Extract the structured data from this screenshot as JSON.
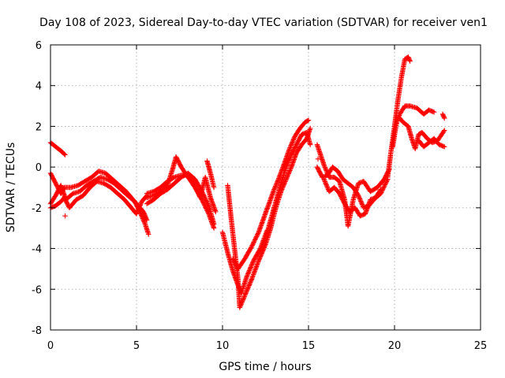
{
  "chart_data": {
    "type": "scatter",
    "title": "Day 108 of 2023, Sidereal Day-to-day VTEC variation (SDTVAR) for receiver ven1",
    "xlabel": "GPS time / hours",
    "ylabel": "SDTVAR / TECUs",
    "xlim": [
      0,
      25
    ],
    "ylim": [
      -8,
      6
    ],
    "xticks": [
      "0",
      "5",
      "10",
      "15",
      "20",
      "25"
    ],
    "yticks": [
      "-8",
      "-6",
      "-4",
      "-2",
      "0",
      "2",
      "4",
      "6"
    ],
    "grid": true,
    "marker": "plus",
    "color": "#ff0000",
    "series": [
      {
        "values": [
          [
            0.0,
            1.2
          ],
          [
            0.3,
            1.0
          ],
          [
            0.6,
            0.8
          ],
          [
            0.85,
            0.6
          ]
        ]
      },
      {
        "values": [
          [
            0.0,
            -0.3
          ],
          [
            0.3,
            -0.8
          ],
          [
            0.6,
            -1.3
          ],
          [
            0.8,
            -1.0
          ],
          [
            1.2,
            -1.0
          ],
          [
            1.6,
            -0.9
          ],
          [
            2.0,
            -0.7
          ],
          [
            2.4,
            -0.5
          ],
          [
            2.8,
            -0.2
          ],
          [
            3.2,
            -0.3
          ],
          [
            3.6,
            -0.6
          ],
          [
            4.0,
            -0.9
          ],
          [
            4.4,
            -1.2
          ],
          [
            4.8,
            -1.6
          ],
          [
            5.1,
            -1.9
          ],
          [
            5.4,
            -2.2
          ],
          [
            5.6,
            -2.6
          ]
        ]
      },
      {
        "values": [
          [
            0.0,
            -1.8
          ],
          [
            0.3,
            -1.4
          ],
          [
            0.6,
            -0.9
          ],
          [
            0.9,
            -1.6
          ],
          [
            1.3,
            -1.3
          ],
          [
            1.7,
            -1.2
          ],
          [
            2.1,
            -0.9
          ],
          [
            2.5,
            -0.7
          ],
          [
            2.9,
            -0.5
          ],
          [
            3.3,
            -0.6
          ],
          [
            3.7,
            -0.8
          ],
          [
            4.1,
            -1.1
          ],
          [
            4.5,
            -1.4
          ],
          [
            4.9,
            -1.7
          ],
          [
            5.2,
            -2.2
          ],
          [
            5.5,
            -2.8
          ],
          [
            5.7,
            -3.3
          ]
        ]
      },
      {
        "values": [
          [
            0.0,
            -2.0
          ],
          [
            0.3,
            -1.9
          ],
          [
            0.6,
            -1.7
          ],
          [
            0.8,
            -1.5
          ],
          [
            1.1,
            -2.0
          ],
          [
            1.5,
            -1.6
          ],
          [
            1.9,
            -1.4
          ],
          [
            2.3,
            -1.0
          ],
          [
            2.7,
            -0.7
          ],
          [
            3.1,
            -0.8
          ],
          [
            3.5,
            -1.0
          ],
          [
            3.9,
            -1.3
          ],
          [
            4.3,
            -1.6
          ],
          [
            4.7,
            -2.0
          ],
          [
            5.0,
            -2.3
          ],
          [
            5.3,
            -1.7
          ],
          [
            5.6,
            -1.4
          ]
        ]
      },
      {
        "values": [
          [
            5.6,
            -1.8
          ],
          [
            6.0,
            -1.6
          ],
          [
            6.4,
            -1.3
          ],
          [
            6.8,
            -1.1
          ],
          [
            7.2,
            -0.8
          ],
          [
            7.6,
            -0.5
          ],
          [
            8.0,
            -0.3
          ],
          [
            8.4,
            -0.6
          ],
          [
            8.8,
            -1.2
          ],
          [
            9.2,
            -1.9
          ],
          [
            9.5,
            -2.8
          ]
        ]
      },
      {
        "values": [
          [
            5.6,
            -1.5
          ],
          [
            6.0,
            -1.4
          ],
          [
            6.4,
            -1.2
          ],
          [
            6.8,
            -0.9
          ],
          [
            7.1,
            -0.1
          ],
          [
            7.3,
            0.5
          ],
          [
            7.6,
            0.0
          ],
          [
            8.0,
            -0.5
          ],
          [
            8.4,
            -1.0
          ],
          [
            8.8,
            -1.6
          ],
          [
            9.2,
            -2.3
          ],
          [
            9.5,
            -3.0
          ]
        ]
      },
      {
        "values": [
          [
            5.6,
            -1.3
          ],
          [
            6.0,
            -1.2
          ],
          [
            6.4,
            -1.0
          ],
          [
            6.8,
            -0.7
          ],
          [
            7.2,
            -0.5
          ],
          [
            7.6,
            -0.4
          ],
          [
            8.0,
            -0.4
          ],
          [
            8.4,
            -0.9
          ],
          [
            8.7,
            -1.5
          ],
          [
            9.0,
            -0.5
          ],
          [
            9.3,
            -1.5
          ],
          [
            9.6,
            -2.2
          ]
        ]
      },
      {
        "values": [
          [
            9.1,
            0.3
          ],
          [
            9.3,
            -0.3
          ],
          [
            9.5,
            -1.0
          ]
        ]
      },
      {
        "values": [
          [
            10.0,
            -3.2
          ],
          [
            10.3,
            -4.2
          ],
          [
            10.6,
            -5.1
          ],
          [
            10.9,
            -5.8
          ],
          [
            11.1,
            -6.2
          ],
          [
            11.4,
            -5.4
          ],
          [
            11.8,
            -4.6
          ],
          [
            12.2,
            -4.0
          ],
          [
            12.6,
            -3.1
          ]
        ]
      },
      {
        "values": [
          [
            10.3,
            -0.9
          ],
          [
            10.5,
            -2.5
          ],
          [
            10.7,
            -4.0
          ],
          [
            10.9,
            -5.5
          ],
          [
            11.0,
            -6.9
          ],
          [
            11.3,
            -6.3
          ],
          [
            11.7,
            -5.5
          ],
          [
            12.1,
            -4.6
          ],
          [
            12.5,
            -3.8
          ],
          [
            12.8,
            -3.0
          ],
          [
            13.1,
            -2.0
          ],
          [
            13.4,
            -1.2
          ],
          [
            13.7,
            -0.6
          ],
          [
            14.0,
            0.0
          ],
          [
            14.3,
            0.7
          ],
          [
            14.6,
            1.1
          ],
          [
            14.9,
            1.4
          ],
          [
            15.1,
            1.9
          ]
        ]
      },
      {
        "values": [
          [
            10.6,
            -4.5
          ],
          [
            10.9,
            -5.0
          ],
          [
            11.3,
            -4.5
          ],
          [
            11.7,
            -3.9
          ],
          [
            12.1,
            -3.2
          ],
          [
            12.4,
            -2.5
          ],
          [
            12.7,
            -1.8
          ],
          [
            13.0,
            -1.1
          ],
          [
            13.3,
            -0.5
          ],
          [
            13.6,
            0.2
          ],
          [
            13.9,
            0.9
          ],
          [
            14.2,
            1.5
          ],
          [
            14.5,
            1.9
          ],
          [
            14.8,
            2.2
          ],
          [
            15.0,
            2.3
          ]
        ]
      },
      {
        "values": [
          [
            12.5,
            -3.5
          ],
          [
            12.8,
            -2.6
          ],
          [
            13.1,
            -1.7
          ],
          [
            13.4,
            -0.8
          ],
          [
            13.7,
            0.0
          ],
          [
            14.0,
            0.6
          ],
          [
            14.3,
            1.1
          ],
          [
            14.6,
            1.6
          ],
          [
            14.9,
            1.7
          ],
          [
            15.1,
            1.1
          ]
        ]
      },
      {
        "values": [
          [
            15.5,
            1.1
          ],
          [
            15.7,
            0.6
          ],
          [
            15.9,
            0.1
          ],
          [
            16.2,
            -0.5
          ],
          [
            16.5,
            -0.5
          ],
          [
            16.8,
            -0.7
          ],
          [
            17.1,
            -1.6
          ],
          [
            17.3,
            -2.9
          ],
          [
            17.6,
            -1.6
          ],
          [
            17.9,
            -0.8
          ],
          [
            18.2,
            -0.7
          ],
          [
            18.6,
            -1.2
          ],
          [
            19.0,
            -1.0
          ],
          [
            19.4,
            -0.6
          ],
          [
            19.7,
            -0.1
          ]
        ]
      },
      {
        "values": [
          [
            15.5,
            0.0
          ],
          [
            15.8,
            -0.5
          ],
          [
            16.1,
            -0.4
          ],
          [
            16.4,
            0.0
          ],
          [
            16.7,
            -0.2
          ],
          [
            17.0,
            -0.6
          ],
          [
            17.3,
            -0.8
          ],
          [
            17.6,
            -1.0
          ],
          [
            17.9,
            -1.4
          ],
          [
            18.2,
            -2.0
          ],
          [
            18.5,
            -1.9
          ],
          [
            18.8,
            -1.6
          ],
          [
            19.2,
            -1.3
          ],
          [
            19.6,
            -0.6
          ]
        ]
      },
      {
        "values": [
          [
            15.9,
            -0.6
          ],
          [
            16.2,
            -1.2
          ],
          [
            16.5,
            -1.0
          ],
          [
            16.8,
            -1.3
          ],
          [
            17.1,
            -1.8
          ],
          [
            17.4,
            -2.2
          ],
          [
            17.7,
            -2.0
          ],
          [
            18.0,
            -2.4
          ],
          [
            18.3,
            -2.3
          ],
          [
            18.6,
            -1.6
          ],
          [
            18.9,
            -1.5
          ],
          [
            19.2,
            -1.1
          ]
        ]
      },
      {
        "values": [
          [
            19.6,
            -0.5
          ],
          [
            19.8,
            0.8
          ],
          [
            20.0,
            2.0
          ],
          [
            20.2,
            3.3
          ],
          [
            20.4,
            4.4
          ],
          [
            20.6,
            5.3
          ],
          [
            20.8,
            5.4
          ],
          [
            20.9,
            5.2
          ]
        ]
      },
      {
        "values": [
          [
            19.9,
            1.0
          ],
          [
            20.1,
            2.1
          ],
          [
            20.3,
            2.6
          ],
          [
            20.6,
            3.0
          ],
          [
            20.9,
            3.0
          ],
          [
            21.3,
            2.9
          ],
          [
            21.7,
            2.6
          ],
          [
            22.0,
            2.8
          ],
          [
            22.3,
            2.7
          ]
        ]
      },
      {
        "values": [
          [
            20.3,
            2.4
          ],
          [
            20.5,
            2.2
          ],
          [
            20.8,
            2.0
          ],
          [
            21.0,
            1.4
          ],
          [
            21.2,
            0.9
          ],
          [
            21.4,
            1.6
          ],
          [
            21.6,
            1.7
          ],
          [
            21.9,
            1.4
          ],
          [
            22.2,
            1.2
          ],
          [
            22.5,
            1.3
          ],
          [
            22.9,
            1.8
          ]
        ]
      },
      {
        "values": [
          [
            21.4,
            1.3
          ],
          [
            21.7,
            1.0
          ],
          [
            22.0,
            1.2
          ],
          [
            22.3,
            1.4
          ],
          [
            22.6,
            1.1
          ],
          [
            22.9,
            1.0
          ]
        ]
      },
      {
        "values": [
          [
            22.8,
            2.6
          ],
          [
            22.9,
            2.4
          ]
        ]
      }
    ],
    "isolated_points": [
      [
        0.85,
        -2.4
      ],
      [
        15.55,
        0.4
      ]
    ]
  }
}
